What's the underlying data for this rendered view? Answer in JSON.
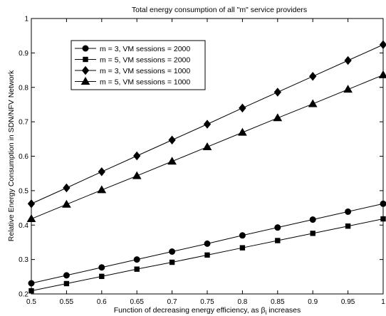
{
  "chart_data": {
    "type": "line",
    "title": "Total energy consumption of all \"m\" service providers",
    "xlabel": "Function of decreasing energy efficiency, as β",
    "xlabel_subscript": "i",
    "xlabel_suffix": " increases",
    "ylabel": "Relative Energy Consumption in SDN/NFV Network",
    "xlim": [
      0.5,
      1
    ],
    "ylim": [
      0.2,
      1
    ],
    "xticks": [
      "0.5",
      "0.55",
      "0.6",
      "0.65",
      "0.7",
      "0.75",
      "0.8",
      "0.85",
      "0.9",
      "0.95",
      "1"
    ],
    "yticks": [
      "0.2",
      "0.3",
      "0.4",
      "0.5",
      "0.6",
      "0.7",
      "0.8",
      "0.9",
      "1"
    ],
    "grid": false,
    "legend_position": "top-left",
    "x": [
      0.5,
      0.55,
      0.6,
      0.65,
      0.7,
      0.75,
      0.8,
      0.85,
      0.9,
      0.95,
      1
    ],
    "series": [
      {
        "name": "m = 3, VM sessions = 2000",
        "marker": "circle",
        "values": [
          0.231,
          0.254,
          0.277,
          0.3,
          0.323,
          0.346,
          0.37,
          0.393,
          0.416,
          0.439,
          0.462
        ]
      },
      {
        "name": "m = 5, VM sessions = 2000",
        "marker": "square",
        "values": [
          0.209,
          0.23,
          0.251,
          0.272,
          0.292,
          0.313,
          0.334,
          0.355,
          0.376,
          0.397,
          0.418
        ]
      },
      {
        "name": "m = 3, VM sessions = 1000",
        "marker": "diamond",
        "values": [
          0.462,
          0.508,
          0.555,
          0.601,
          0.647,
          0.693,
          0.74,
          0.786,
          0.832,
          0.878,
          0.924
        ]
      },
      {
        "name": "m = 5, VM sessions = 1000",
        "marker": "triangle",
        "values": [
          0.418,
          0.46,
          0.502,
          0.543,
          0.585,
          0.627,
          0.669,
          0.711,
          0.752,
          0.794,
          0.836
        ]
      }
    ]
  }
}
